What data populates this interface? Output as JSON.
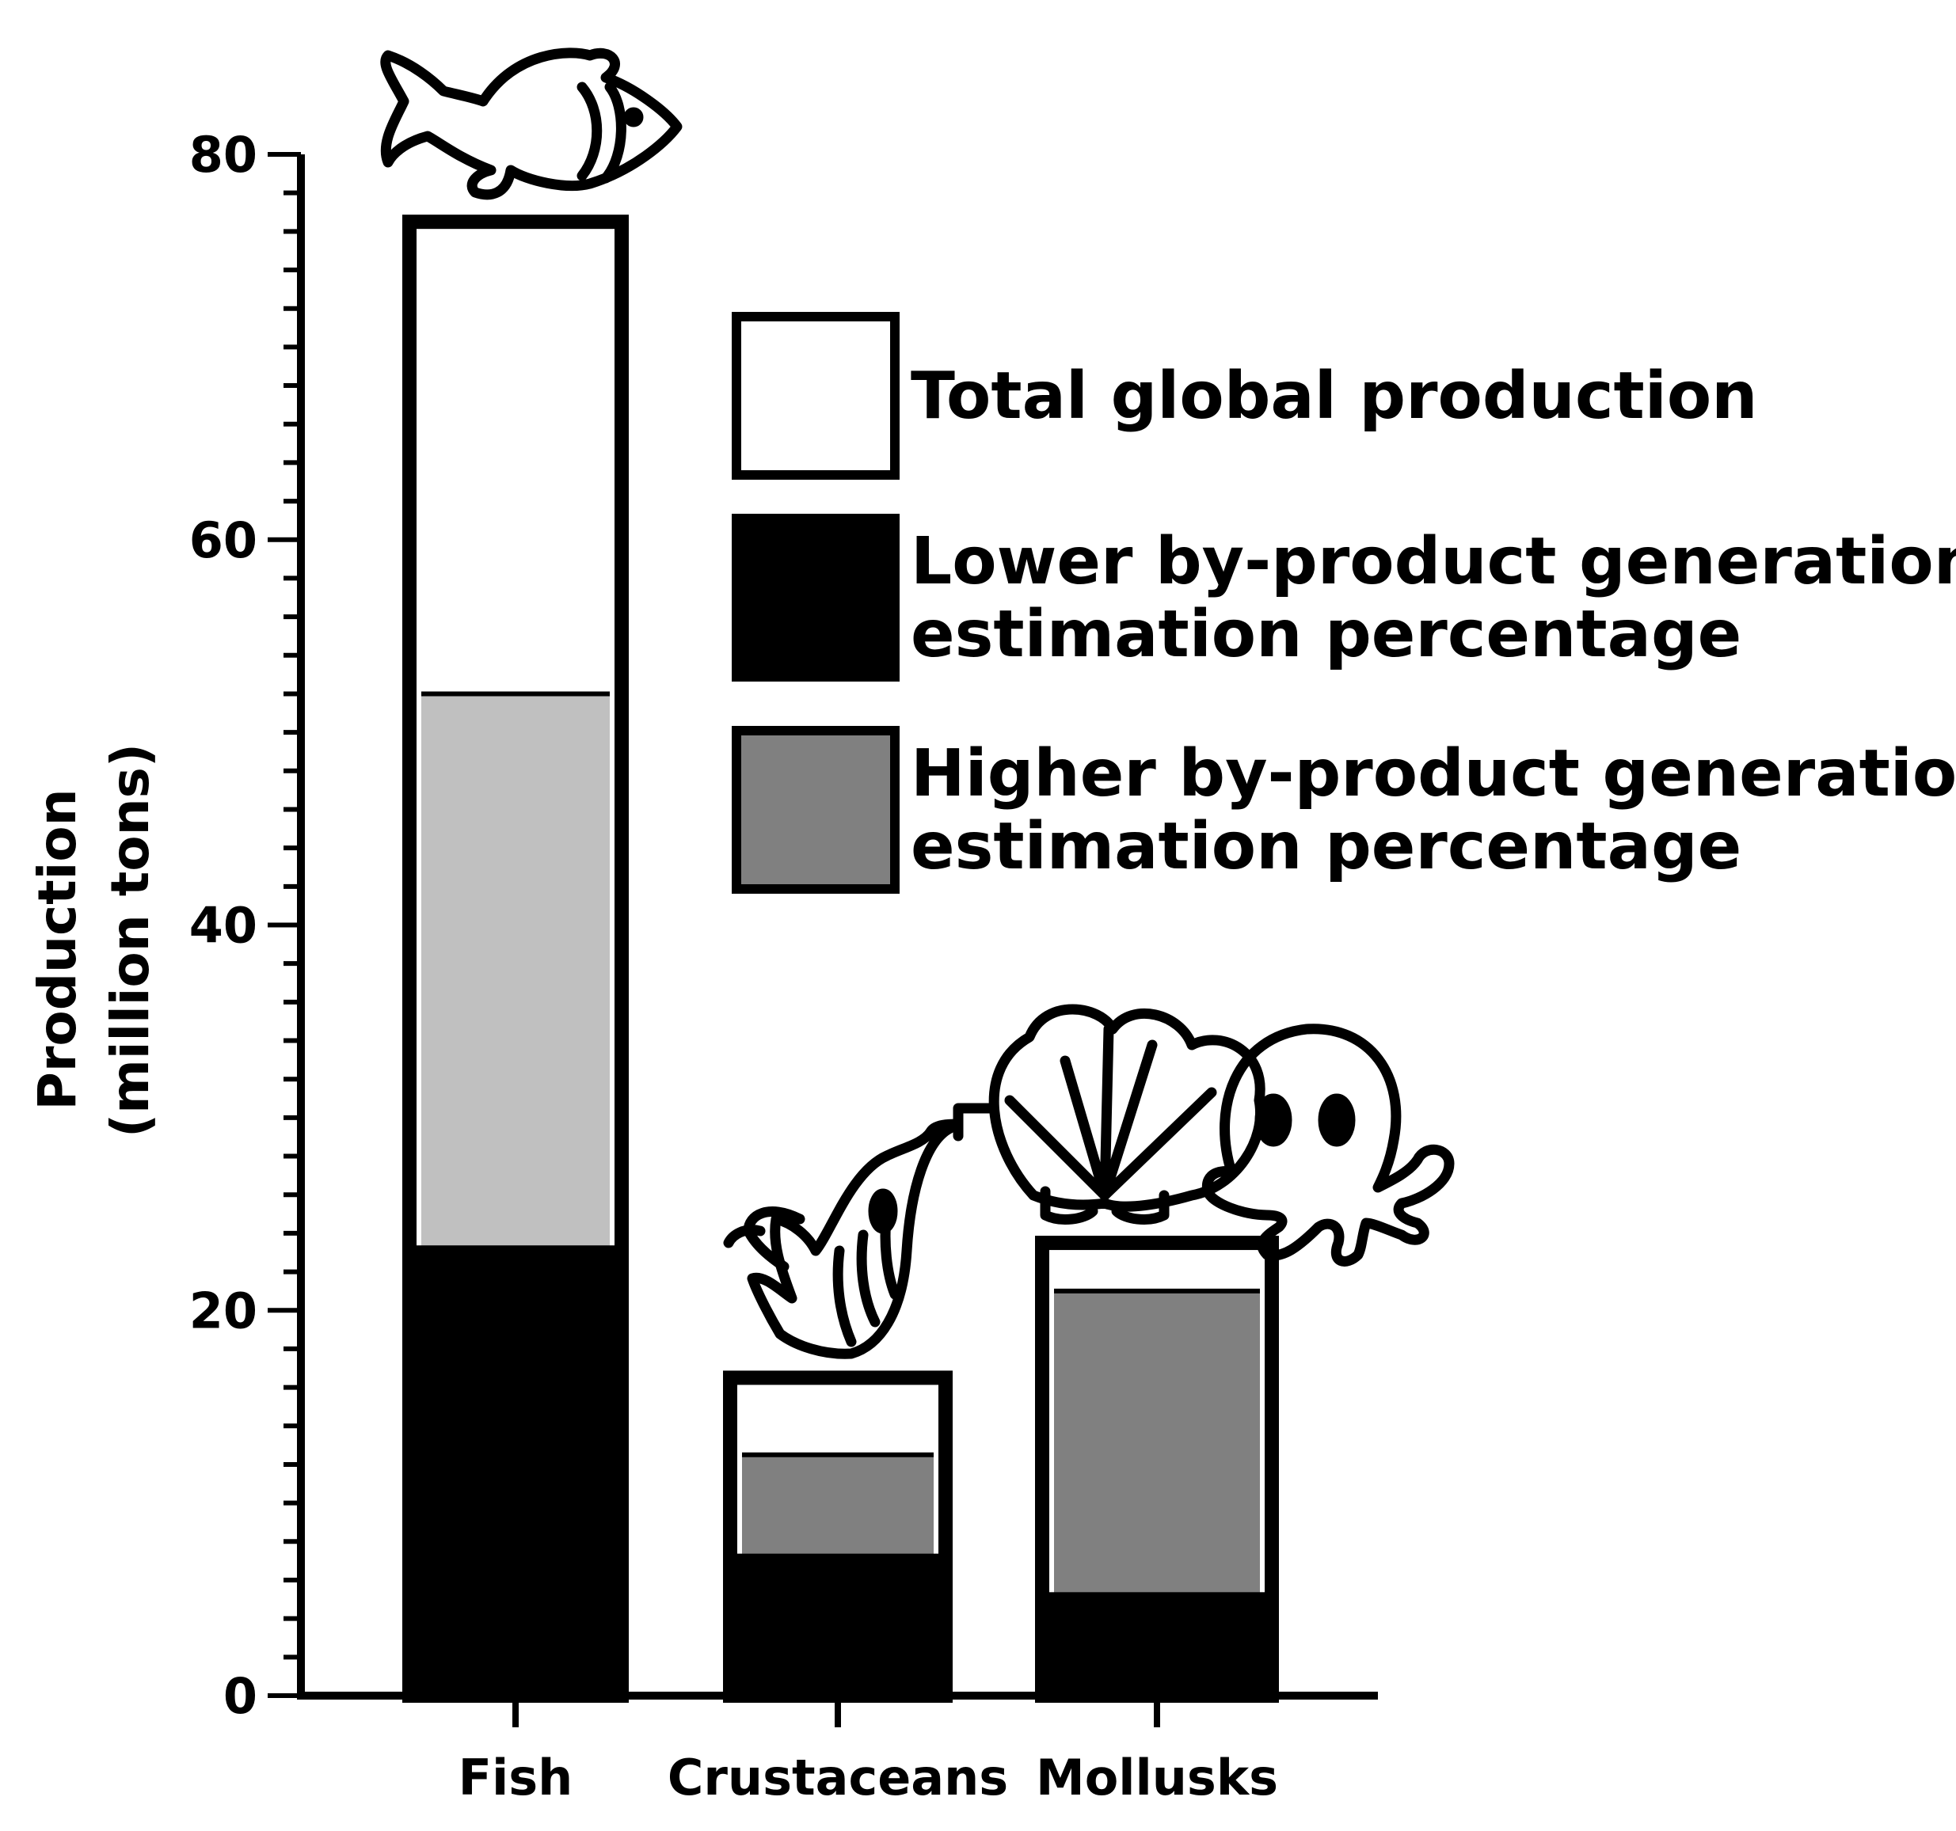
{
  "chart_data": {
    "type": "bar",
    "stacked": "overlay",
    "title": "",
    "xlabel": "",
    "ylabel_lines": [
      "Production",
      "(million tons)"
    ],
    "ylim": [
      0,
      80
    ],
    "y_ticks": [
      0,
      20,
      40,
      60,
      80
    ],
    "y_minor_step": 2,
    "categories": [
      "Fish",
      "Crustaceans",
      "Mollusks"
    ],
    "series": [
      {
        "name": "Total global production",
        "color": "#ffffff",
        "values": [
          76.5,
          16.5,
          23.5
        ]
      },
      {
        "name": "Higher by-product generation estimation percentage",
        "color": "#808080",
        "fish_color": "#c0c0c0",
        "values": [
          52,
          12.5,
          21
        ]
      },
      {
        "name": "Lower by-product generation estimation percentage",
        "color": "#000000",
        "values": [
          23,
          7,
          5
        ]
      }
    ],
    "legend": {
      "position": "top-right",
      "items": [
        {
          "lines": [
            "Total global production"
          ],
          "color": "#ffffff"
        },
        {
          "lines": [
            "Lower by-product generation",
            "estimation percentage"
          ],
          "color": "#000000"
        },
        {
          "lines": [
            "Higher by-product generation",
            "estimation percentage"
          ],
          "color": "#808080"
        }
      ]
    },
    "icons": [
      "fish-icon",
      "shrimp-icon",
      "scallop-shell-icon",
      "octopus-icon"
    ]
  }
}
